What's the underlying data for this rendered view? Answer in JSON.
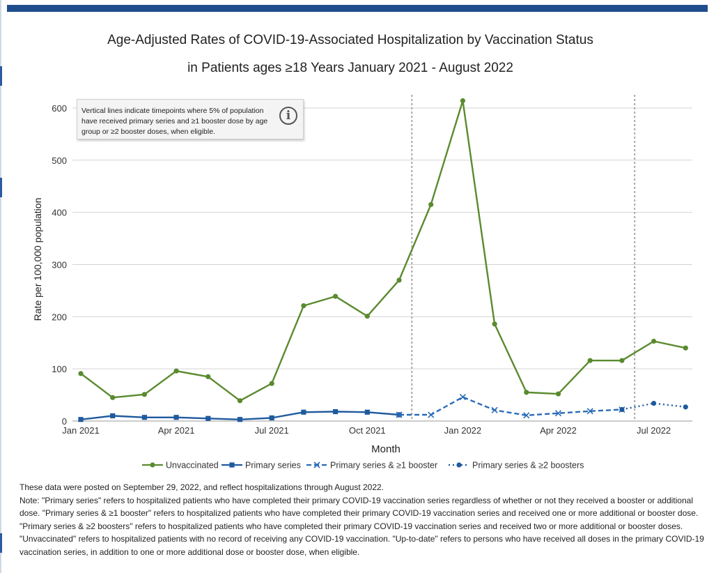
{
  "chart_data": {
    "type": "line",
    "title": "Age-Adjusted Rates of COVID-19-Associated Hospitalization by Vaccination Status",
    "subtitle": "in Patients ages ≥18 Years January 2021 - August 2022",
    "xlabel": "Month",
    "ylabel": "Rate per 100,000 population",
    "ylim": [
      0,
      620
    ],
    "yticks": [
      0,
      100,
      200,
      300,
      400,
      500,
      600
    ],
    "x": [
      "Jan 2021",
      "Feb 2021",
      "Mar 2021",
      "Apr 2021",
      "May 2021",
      "Jun 2021",
      "Jul 2021",
      "Aug 2021",
      "Sep 2021",
      "Oct 2021",
      "Nov 2021",
      "Dec 2021",
      "Jan 2022",
      "Feb 2022",
      "Mar 2022",
      "Apr 2022",
      "May 2022",
      "Jun 2022",
      "Jul 2022",
      "Aug 2022"
    ],
    "xtick_labels": [
      {
        "index": 0,
        "label": "Jan 2021"
      },
      {
        "index": 3,
        "label": "Apr 2021"
      },
      {
        "index": 6,
        "label": "Jul 2021"
      },
      {
        "index": 9,
        "label": "Oct 2021"
      },
      {
        "index": 12,
        "label": "Jan 2022"
      },
      {
        "index": 15,
        "label": "Apr 2022"
      },
      {
        "index": 18,
        "label": "Jul 2022"
      }
    ],
    "series": [
      {
        "name": "Unvaccinated",
        "color": "#5a8a2e",
        "marker": "circle",
        "dash": "solid",
        "values": [
          91,
          45,
          51,
          96,
          85,
          39,
          72,
          221,
          239,
          201,
          270,
          415,
          614,
          186,
          55,
          52,
          116,
          116,
          153,
          140
        ]
      },
      {
        "name": "Primary series",
        "color": "#1f5a9e",
        "marker": "square",
        "dash": "solid",
        "values": [
          3,
          10,
          7,
          7,
          5,
          3,
          6,
          17,
          18,
          17,
          12,
          null,
          null,
          null,
          null,
          null,
          null,
          null,
          null,
          null
        ]
      },
      {
        "name": "Primary series & ≥1 booster",
        "color": "#2a6bb8",
        "marker": "x",
        "dash": "dashed",
        "values": [
          null,
          null,
          null,
          null,
          null,
          null,
          null,
          null,
          null,
          null,
          12,
          12,
          46,
          21,
          11,
          15,
          19,
          22,
          null,
          null
        ]
      },
      {
        "name": "Primary series & ≥2 boosters",
        "color": "#1f5a9e",
        "marker": "circle",
        "dash": "dotted",
        "values": [
          null,
          null,
          null,
          null,
          null,
          null,
          null,
          null,
          null,
          null,
          null,
          null,
          null,
          null,
          null,
          null,
          null,
          22,
          34,
          27
        ]
      }
    ],
    "vertical_lines": [
      10.4,
      17.4
    ],
    "grid": true,
    "legend": "bottom"
  },
  "note_box": {
    "text": "Vertical lines indicate timepoints where 5% of population have received primary series and ≥1 booster dose by age group or ≥2 booster doses, when eligible.",
    "icon": "info-icon",
    "icon_glyph": "i"
  },
  "footnotes": {
    "posted": "These data were posted on September 29, 2022, and reflect hospitalizations through August 2022.",
    "note": "Note: \"Primary series\" refers to hospitalized patients who have completed their primary COVID-19 vaccination series regardless of whether or not they received a booster or additional dose. \"Primary series & ≥1 booster\" refers to hospitalized patients who have completed their primary COVID-19 vaccination series and received one or more additional or booster dose. \"Primary series & ≥2 boosters\" refers to hospitalized patients who have completed their primary COVID-19 vaccination series and received two or more additional or booster doses. \"Unvaccinated\" refers to hospitalized patients with no record of receiving any COVID-19 vaccination. \"Up-to-date\" refers to persons who have received all doses in the primary COVID-19 vaccination series, in addition to one or more additional dose or booster dose, when eligible."
  },
  "colors": {
    "header_bar": "#1f4e8c",
    "unvaccinated": "#5a8a2e",
    "vaccinated": "#1f5a9e",
    "grid": "#d4d4d4"
  }
}
